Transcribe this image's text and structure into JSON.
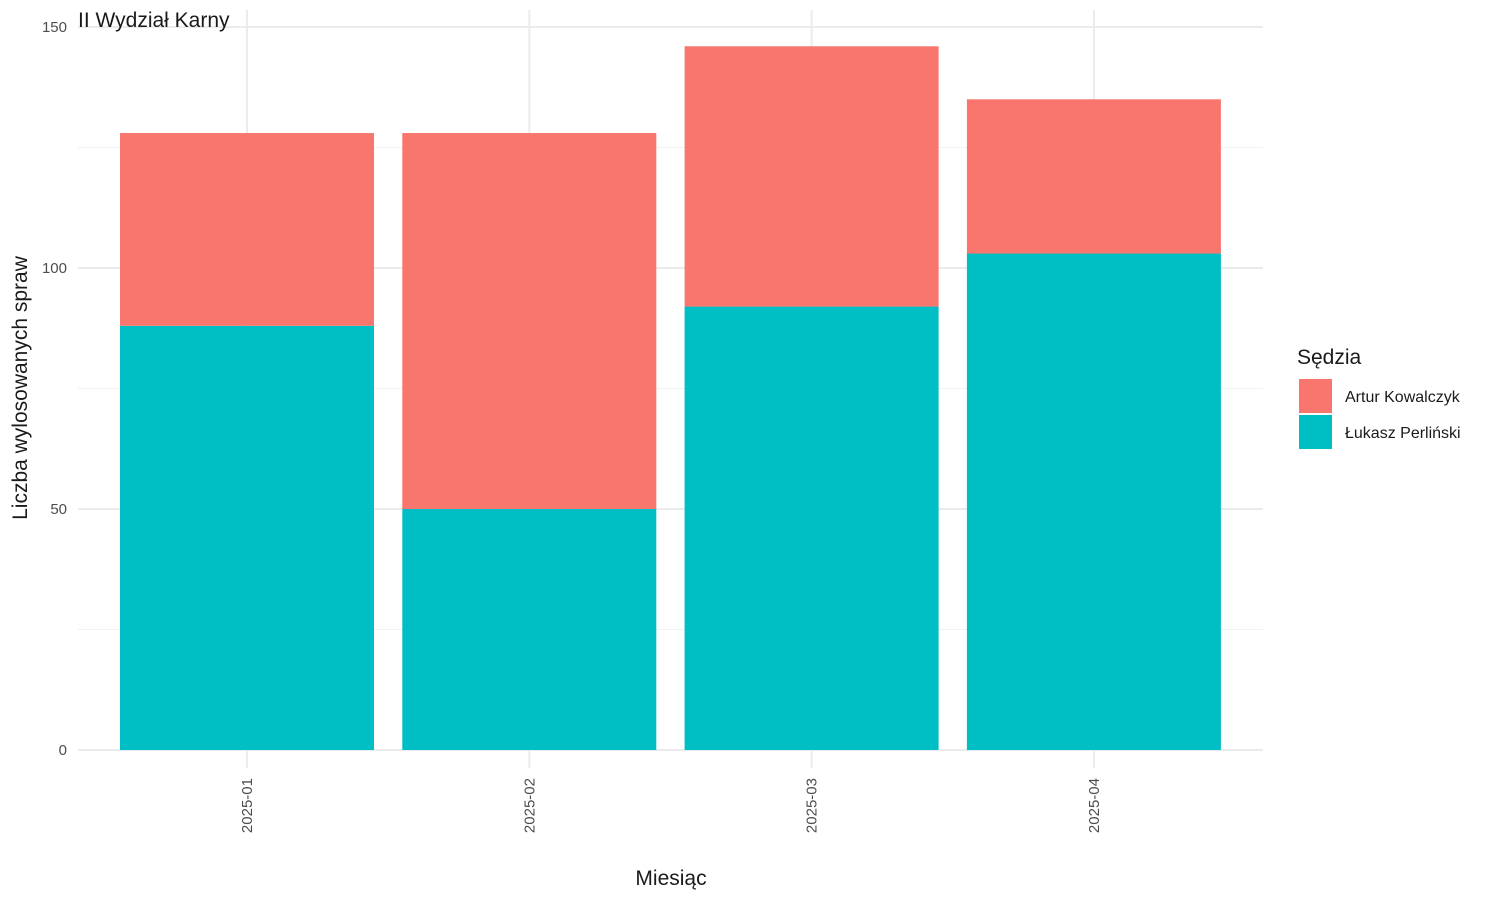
{
  "chart_data": {
    "type": "bar",
    "stacked": true,
    "title": "II Wydział Karny",
    "xlabel": "Miesiąc",
    "ylabel": "Liczba wylosowanych spraw",
    "categories": [
      "2025-01",
      "2025-02",
      "2025-03",
      "2025-04"
    ],
    "ylim": [
      0,
      150
    ],
    "yticks": [
      0,
      50,
      100,
      150
    ],
    "grid": true,
    "legend": {
      "title": "Sędzia",
      "position": "right",
      "entries": [
        "Artur Kowalczyk",
        "Łukasz Perliński"
      ]
    },
    "series": [
      {
        "name": "Łukasz Perliński",
        "color": "#00BFC4",
        "values": [
          88,
          50,
          92,
          103
        ]
      },
      {
        "name": "Artur Kowalczyk",
        "color": "#F8766D",
        "values": [
          40,
          78,
          54,
          32
        ]
      }
    ]
  }
}
